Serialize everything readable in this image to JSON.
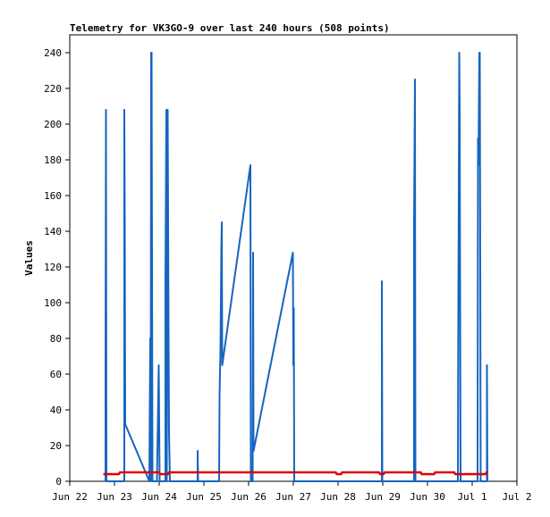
{
  "chart_data": {
    "type": "line",
    "title": "Telemetry for VK3GO-9 over last 240 hours (508 points)",
    "xlabel": "",
    "ylabel": "Values",
    "xlim": [
      "Jun 22",
      "Jul 2"
    ],
    "ylim": [
      0,
      250
    ],
    "x_ticks": [
      "Jun 22",
      "Jun 23",
      "Jun 24",
      "Jun 25",
      "Jun 26",
      "Jun 27",
      "Jun 28",
      "Jun 29",
      "Jun 30",
      "Jul 1",
      "Jul 2"
    ],
    "y_ticks": [
      0,
      20,
      40,
      60,
      80,
      100,
      120,
      140,
      160,
      180,
      200,
      220,
      240
    ],
    "grid": false,
    "legend": "none",
    "series": [
      {
        "color": "#1565c0",
        "points": [
          [
            0.8,
            0
          ],
          [
            0.8,
            65
          ],
          [
            0.81,
            208
          ],
          [
            0.82,
            0
          ],
          [
            1.22,
            0
          ],
          [
            1.22,
            208
          ],
          [
            1.23,
            145
          ],
          [
            1.24,
            32
          ],
          [
            1.78,
            0
          ],
          [
            1.8,
            80
          ],
          [
            1.81,
            0
          ],
          [
            1.82,
            240
          ],
          [
            1.83,
            240
          ],
          [
            1.85,
            0
          ],
          [
            1.95,
            0
          ],
          [
            1.99,
            65
          ],
          [
            2.01,
            0
          ],
          [
            2.14,
            0
          ],
          [
            2.14,
            112
          ],
          [
            2.16,
            208
          ],
          [
            2.17,
            0
          ],
          [
            2.19,
            208
          ],
          [
            2.21,
            80
          ],
          [
            2.22,
            27
          ],
          [
            2.24,
            0
          ],
          [
            2.86,
            0
          ],
          [
            2.86,
            17
          ],
          [
            2.87,
            0
          ],
          [
            3.34,
            0
          ],
          [
            3.35,
            48
          ],
          [
            3.37,
            73
          ],
          [
            3.38,
            100
          ],
          [
            3.39,
            130
          ],
          [
            3.4,
            145
          ],
          [
            3.41,
            65
          ],
          [
            4.04,
            177
          ],
          [
            4.05,
            0
          ],
          [
            4.09,
            0
          ],
          [
            4.1,
            128
          ],
          [
            4.11,
            17
          ],
          [
            4.99,
            128
          ],
          [
            5.0,
            65
          ],
          [
            5.01,
            97
          ],
          [
            5.02,
            0
          ],
          [
            6.98,
            0
          ],
          [
            6.98,
            112
          ],
          [
            6.99,
            0
          ],
          [
            7.7,
            0
          ],
          [
            7.7,
            145
          ],
          [
            7.72,
            225
          ],
          [
            7.73,
            0
          ],
          [
            8.68,
            0
          ],
          [
            8.69,
            97
          ],
          [
            8.7,
            160
          ],
          [
            8.71,
            240
          ],
          [
            8.72,
            208
          ],
          [
            8.74,
            0
          ],
          [
            9.12,
            0
          ],
          [
            9.13,
            192
          ],
          [
            9.14,
            177
          ],
          [
            9.16,
            240
          ],
          [
            9.17,
            240
          ],
          [
            9.19,
            0
          ],
          [
            9.33,
            0
          ],
          [
            9.33,
            65
          ],
          [
            9.34,
            0
          ]
        ]
      },
      {
        "color": "#dd0000",
        "points": [
          [
            0.75,
            4
          ],
          [
            1.1,
            4
          ],
          [
            1.12,
            5
          ],
          [
            2.0,
            5
          ],
          [
            2.02,
            4
          ],
          [
            2.2,
            4
          ],
          [
            2.22,
            5
          ],
          [
            5.95,
            5
          ],
          [
            5.97,
            4
          ],
          [
            6.07,
            4
          ],
          [
            6.09,
            5
          ],
          [
            6.92,
            5
          ],
          [
            6.94,
            4
          ],
          [
            7.02,
            4
          ],
          [
            7.04,
            5
          ],
          [
            7.85,
            5
          ],
          [
            7.87,
            4
          ],
          [
            8.15,
            4
          ],
          [
            8.17,
            5
          ],
          [
            8.6,
            5
          ],
          [
            8.62,
            4
          ],
          [
            9.3,
            4
          ],
          [
            9.32,
            5
          ],
          [
            9.36,
            5
          ]
        ]
      }
    ]
  }
}
